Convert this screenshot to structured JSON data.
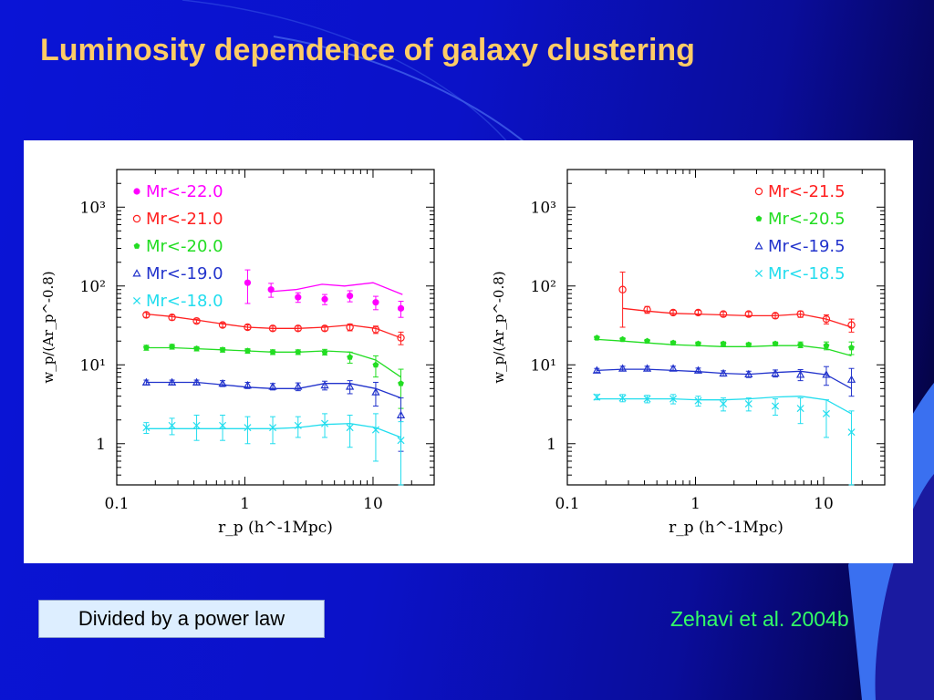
{
  "slide": {
    "title": "Luminosity dependence of galaxy clustering",
    "caption": "Divided by a power law",
    "citation": "Zehavi et al. 2004b"
  },
  "colors": {
    "title": "#ffcc66",
    "citation": "#33ff66",
    "caption_bg": "#ddeeff"
  },
  "chart_data": [
    {
      "type": "line",
      "ylabel": "w_p/(Ar_p^-0.8)",
      "xlabel": "r_p (h^-1Mpc)",
      "xscale": "log",
      "yscale": "log",
      "xlim": [
        0.1,
        30
      ],
      "ylim": [
        0.3,
        3000
      ],
      "xticks": [
        "0.1",
        "1",
        "10"
      ],
      "yticks": [
        "1",
        "10¹",
        "10²",
        "10³"
      ],
      "legend_position": "top-left",
      "series": [
        {
          "name": "Mr<-22.0",
          "color": "#ff00ff",
          "marker": "filled-circle",
          "x": [
            1.05,
            1.6,
            2.6,
            4.2,
            6.6,
            10.5,
            16.5
          ],
          "y": [
            110,
            90,
            72,
            68,
            75,
            62,
            52
          ],
          "err": [
            50,
            18,
            10,
            10,
            12,
            12,
            12
          ],
          "model_x": [
            1.6,
            2.5,
            4,
            6,
            10,
            17
          ],
          "model_y": [
            85,
            90,
            105,
            100,
            110,
            78
          ]
        },
        {
          "name": "Mr<-21.0",
          "color": "#ff2020",
          "marker": "open-circle",
          "x": [
            0.17,
            0.27,
            0.42,
            0.67,
            1.05,
            1.65,
            2.6,
            4.2,
            6.6,
            10.5,
            16.5
          ],
          "y": [
            43,
            40,
            36,
            32,
            30,
            29,
            29,
            29,
            30,
            28,
            22
          ],
          "err": [
            3,
            3,
            2,
            2,
            2,
            2,
            2,
            2,
            3,
            3,
            4
          ],
          "model_x": [
            0.17,
            0.27,
            0.42,
            0.67,
            1.05,
            1.65,
            2.6,
            4.2,
            6.6,
            10.5,
            16.5
          ],
          "model_y": [
            44,
            41,
            37,
            33,
            30,
            29,
            29,
            30,
            32,
            29,
            22
          ]
        },
        {
          "name": "Mr<-20.0",
          "color": "#22dd22",
          "marker": "filled-pentagon",
          "x": [
            0.17,
            0.27,
            0.42,
            0.67,
            1.05,
            1.65,
            2.6,
            4.2,
            6.6,
            10.5,
            16.5
          ],
          "y": [
            16.5,
            17,
            16,
            15.5,
            15,
            14.5,
            14.5,
            14.5,
            12.5,
            10,
            5.8
          ],
          "err": [
            1.2,
            1.2,
            1,
            1,
            1,
            1,
            1,
            1.2,
            2,
            3,
            3
          ],
          "model_x": [
            0.17,
            0.27,
            0.42,
            0.67,
            1.05,
            1.65,
            2.6,
            4.2,
            6.6,
            10.5,
            16.5
          ],
          "model_y": [
            16.5,
            16.5,
            16,
            15.5,
            15,
            14.5,
            14.5,
            15,
            14.5,
            11.5,
            7
          ]
        },
        {
          "name": "Mr<-19.0",
          "color": "#2233cc",
          "marker": "open-triangle",
          "x": [
            0.17,
            0.27,
            0.42,
            0.67,
            1.05,
            1.65,
            2.6,
            4.2,
            6.6,
            10.5,
            16.5
          ],
          "y": [
            6,
            6,
            6,
            5.8,
            5.5,
            5.3,
            5.3,
            5.5,
            5.3,
            4.5,
            2.3
          ],
          "err": [
            0.4,
            0.4,
            0.4,
            0.5,
            0.5,
            0.5,
            0.6,
            0.7,
            1,
            1.5,
            1.5
          ],
          "model_x": [
            0.17,
            0.27,
            0.42,
            0.67,
            1.05,
            1.65,
            2.6,
            4.2,
            6.6,
            10.5,
            16.5
          ],
          "model_y": [
            6,
            6,
            6,
            5.6,
            5.2,
            5,
            5,
            5.8,
            5.8,
            5,
            3.8
          ]
        },
        {
          "name": "Mr<-18.0",
          "color": "#22ddee",
          "marker": "cross",
          "x": [
            0.17,
            0.27,
            0.42,
            0.67,
            1.05,
            1.65,
            2.6,
            4.2,
            6.6,
            10.5,
            16.5
          ],
          "y": [
            1.6,
            1.7,
            1.7,
            1.7,
            1.6,
            1.6,
            1.7,
            1.8,
            1.6,
            1.5,
            1.1
          ],
          "err": [
            0.25,
            0.4,
            0.6,
            0.6,
            0.6,
            0.6,
            0.5,
            0.6,
            0.7,
            0.9,
            0.8
          ],
          "model_x": [
            0.17,
            0.27,
            0.42,
            0.67,
            1.05,
            1.65,
            2.6,
            4.2,
            6.6,
            10.5,
            16.5
          ],
          "model_y": [
            1.55,
            1.55,
            1.55,
            1.55,
            1.55,
            1.55,
            1.6,
            1.75,
            1.8,
            1.6,
            1.2
          ]
        }
      ]
    },
    {
      "type": "line",
      "ylabel": "w_p/(Ar_p^-0.8)",
      "xlabel": "r_p (h^-1Mpc)",
      "xscale": "log",
      "yscale": "log",
      "xlim": [
        0.1,
        30
      ],
      "ylim": [
        0.3,
        3000
      ],
      "xticks": [
        "0.1",
        "1",
        "10"
      ],
      "yticks": [
        "1",
        "10¹",
        "10²",
        "10³"
      ],
      "legend_position": "top-right",
      "series": [
        {
          "name": "Mr<-21.5",
          "color": "#ff2020",
          "marker": "open-circle",
          "x": [
            0.27,
            0.42,
            0.67,
            1.05,
            1.65,
            2.6,
            4.2,
            6.6,
            10.5,
            16.5
          ],
          "y": [
            90,
            50,
            46,
            46,
            44,
            44,
            42,
            44,
            38,
            32
          ],
          "err": [
            60,
            5,
            3,
            3,
            3,
            3,
            3,
            4,
            5,
            6
          ],
          "model_x": [
            0.27,
            0.42,
            0.67,
            1.05,
            1.65,
            2.6,
            4.2,
            6.6,
            10.5,
            16.5
          ],
          "model_y": [
            52,
            48,
            45,
            44,
            43,
            42,
            42,
            44,
            38,
            30
          ]
        },
        {
          "name": "Mr<-20.5",
          "color": "#22dd22",
          "marker": "filled-pentagon",
          "x": [
            0.17,
            0.27,
            0.42,
            0.67,
            1.05,
            1.65,
            2.6,
            4.2,
            6.6,
            10.5,
            16.5
          ],
          "y": [
            22,
            21,
            20,
            19,
            18.5,
            18.5,
            18,
            18.5,
            18,
            17.5,
            16.5
          ],
          "err": [
            1,
            1,
            1,
            1,
            1,
            1,
            1,
            1,
            1.5,
            2,
            3
          ],
          "model_x": [
            0.17,
            0.27,
            0.42,
            0.67,
            1.05,
            1.65,
            2.6,
            4.2,
            6.6,
            10.5,
            16.5
          ],
          "model_y": [
            21,
            20,
            19,
            18,
            17.5,
            17,
            17,
            17.5,
            17.5,
            16,
            13
          ]
        },
        {
          "name": "Mr<-19.5",
          "color": "#2233cc",
          "marker": "open-triangle",
          "x": [
            0.17,
            0.27,
            0.42,
            0.67,
            1.05,
            1.65,
            2.6,
            4.2,
            6.6,
            10.5,
            16.5
          ],
          "y": [
            8.5,
            9,
            9,
            9,
            8.5,
            7.8,
            7.6,
            7.8,
            7.5,
            7.5,
            6.5
          ],
          "err": [
            0.5,
            0.6,
            0.6,
            0.6,
            0.6,
            0.6,
            0.7,
            0.8,
            1.2,
            2,
            2.5
          ],
          "model_x": [
            0.17,
            0.27,
            0.42,
            0.67,
            1.05,
            1.65,
            2.6,
            4.2,
            6.6,
            10.5,
            16.5
          ],
          "model_y": [
            8.5,
            8.8,
            8.8,
            8.5,
            8.2,
            7.8,
            7.6,
            8,
            8.3,
            7.5,
            5
          ]
        },
        {
          "name": "Mr<-18.5",
          "color": "#22ddee",
          "marker": "cross",
          "x": [
            0.17,
            0.27,
            0.42,
            0.67,
            1.05,
            1.65,
            2.6,
            4.2,
            6.6,
            10.5,
            16.5
          ],
          "y": [
            3.9,
            3.8,
            3.7,
            3.7,
            3.5,
            3.2,
            3.2,
            3.0,
            2.8,
            2.4,
            1.4
          ],
          "err": [
            0.3,
            0.4,
            0.4,
            0.5,
            0.5,
            0.6,
            0.6,
            0.7,
            1.0,
            1.2,
            1.2
          ],
          "model_x": [
            0.17,
            0.27,
            0.42,
            0.67,
            1.05,
            1.65,
            2.6,
            4.2,
            6.6,
            10.5,
            16.5
          ],
          "model_y": [
            3.7,
            3.7,
            3.7,
            3.7,
            3.6,
            3.6,
            3.7,
            3.9,
            4.0,
            3.6,
            2.4
          ]
        }
      ]
    }
  ]
}
